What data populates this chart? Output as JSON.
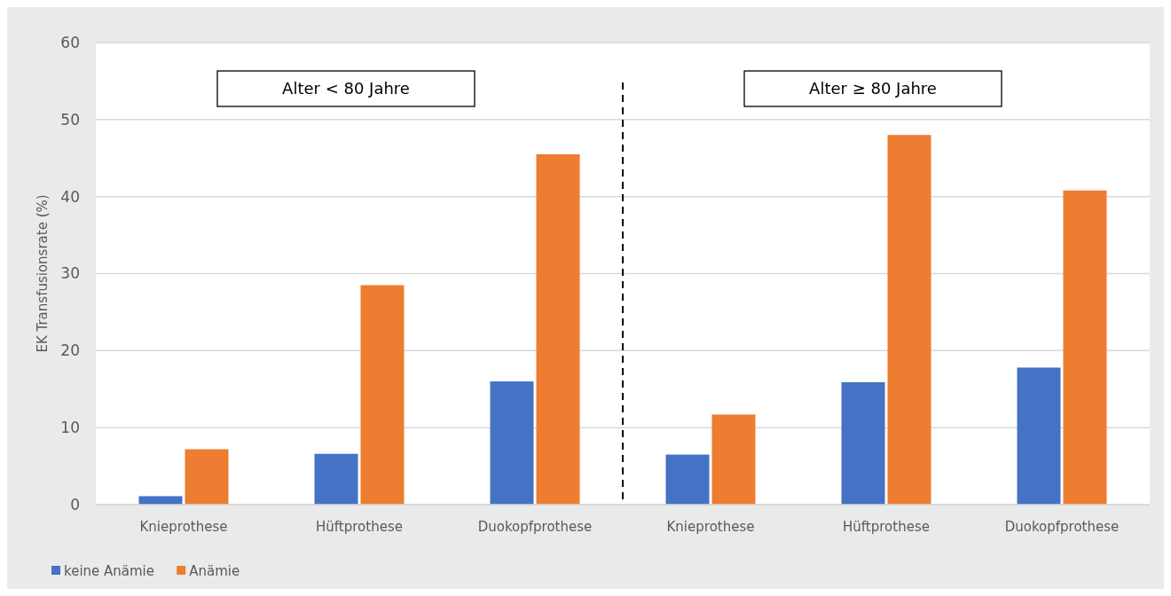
{
  "chart_data": {
    "type": "bar",
    "ylabel": "EK Transfusionsrate (%)",
    "categories": [
      "Knieprothese",
      "Hüftprothese",
      "Duokopfprothese",
      "Knieprothese",
      "Hüftprothese",
      "Duokopfprothese"
    ],
    "series": [
      {
        "name": "keine Anämie",
        "color": "#4472c4",
        "values": [
          1.1,
          6.6,
          16.0,
          6.5,
          15.9,
          17.8
        ]
      },
      {
        "name": "Anämie",
        "color": "#ed7d31",
        "values": [
          7.2,
          28.5,
          45.5,
          11.7,
          48.0,
          40.8
        ]
      }
    ],
    "ylim": [
      0,
      60
    ],
    "yticks": [
      0,
      10,
      20,
      30,
      40,
      50,
      60
    ],
    "grid": "y",
    "legend": "bottom left",
    "annotations": [
      "Alter < 80 Jahre",
      "Alter ≥ 80 Jahre"
    ]
  }
}
